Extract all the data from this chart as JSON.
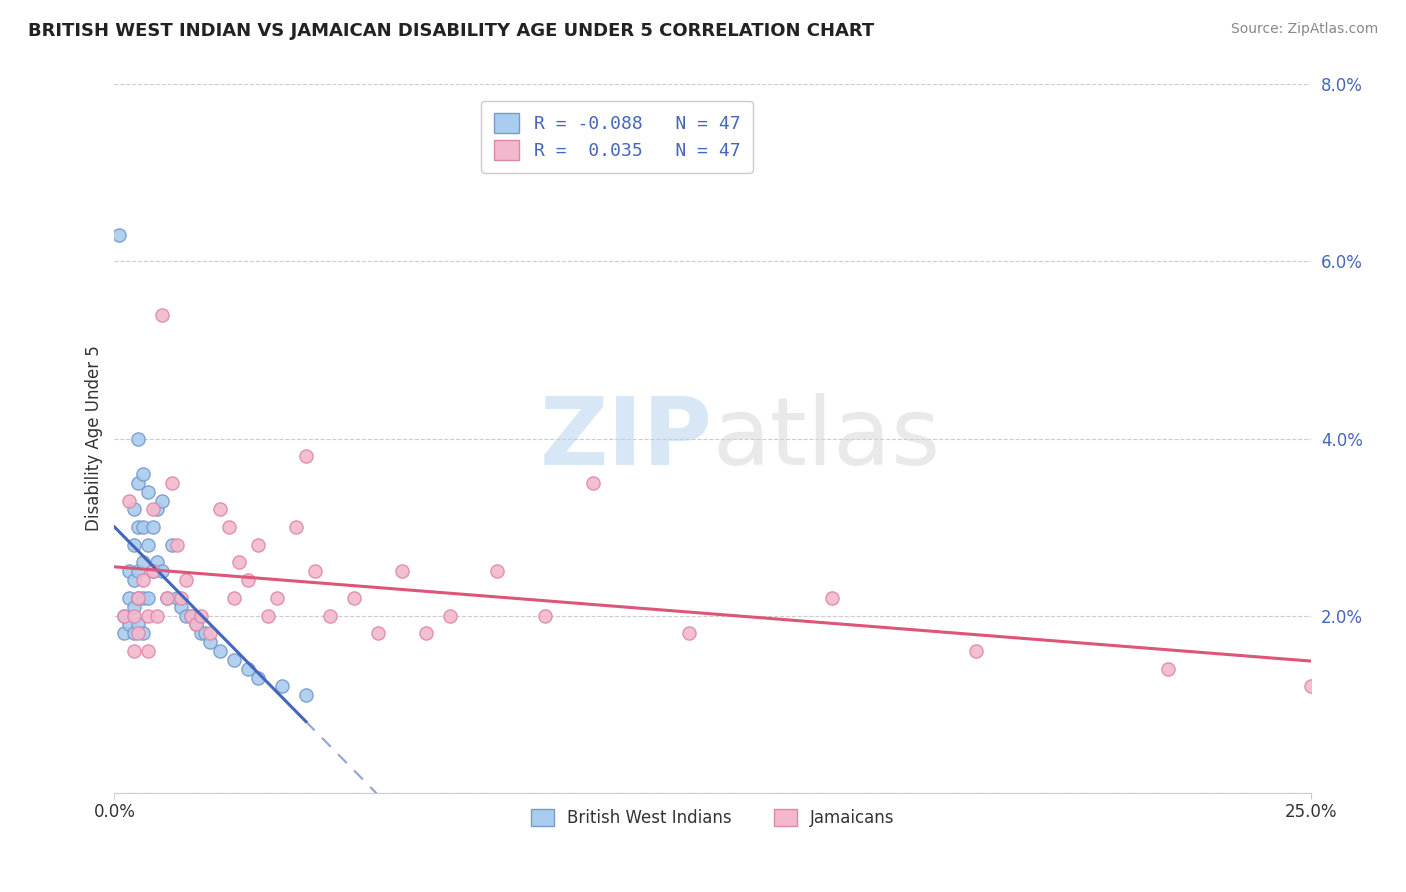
{
  "title": "BRITISH WEST INDIAN VS JAMAICAN DISABILITY AGE UNDER 5 CORRELATION CHART",
  "source": "Source: ZipAtlas.com",
  "ylabel": "Disability Age Under 5",
  "legend_labels": [
    "British West Indians",
    "Jamaicans"
  ],
  "color_bwi": "#aaccee",
  "color_jam": "#f4b8ce",
  "color_bwi_edge": "#7799cc",
  "color_jam_edge": "#dd88aa",
  "color_bwi_line": "#4466bb",
  "color_jam_line": "#dd5577",
  "xlim": [
    0.0,
    0.25
  ],
  "ylim": [
    0.0,
    0.08
  ],
  "yticks": [
    0.0,
    0.02,
    0.04,
    0.06,
    0.08
  ],
  "ytick_labels": [
    "",
    "2.0%",
    "4.0%",
    "6.0%",
    "8.0%"
  ],
  "watermark_zip": "ZIP",
  "watermark_atlas": "atlas",
  "bwi_x": [
    0.001,
    0.002,
    0.002,
    0.003,
    0.003,
    0.003,
    0.004,
    0.004,
    0.004,
    0.004,
    0.004,
    0.005,
    0.005,
    0.005,
    0.005,
    0.005,
    0.005,
    0.006,
    0.006,
    0.006,
    0.006,
    0.006,
    0.007,
    0.007,
    0.007,
    0.008,
    0.008,
    0.009,
    0.009,
    0.01,
    0.01,
    0.011,
    0.012,
    0.013,
    0.014,
    0.015,
    0.016,
    0.017,
    0.018,
    0.019,
    0.02,
    0.022,
    0.025,
    0.028,
    0.03,
    0.035,
    0.04
  ],
  "bwi_y": [
    0.063,
    0.02,
    0.018,
    0.025,
    0.022,
    0.019,
    0.032,
    0.028,
    0.024,
    0.021,
    0.018,
    0.04,
    0.035,
    0.03,
    0.025,
    0.022,
    0.019,
    0.036,
    0.03,
    0.026,
    0.022,
    0.018,
    0.034,
    0.028,
    0.022,
    0.03,
    0.025,
    0.032,
    0.026,
    0.033,
    0.025,
    0.022,
    0.028,
    0.022,
    0.021,
    0.02,
    0.02,
    0.019,
    0.018,
    0.018,
    0.017,
    0.016,
    0.015,
    0.014,
    0.013,
    0.012,
    0.011
  ],
  "jam_x": [
    0.002,
    0.003,
    0.004,
    0.004,
    0.005,
    0.005,
    0.006,
    0.007,
    0.007,
    0.008,
    0.008,
    0.009,
    0.01,
    0.011,
    0.012,
    0.013,
    0.014,
    0.015,
    0.016,
    0.017,
    0.018,
    0.02,
    0.022,
    0.024,
    0.025,
    0.026,
    0.028,
    0.03,
    0.032,
    0.034,
    0.038,
    0.04,
    0.042,
    0.045,
    0.05,
    0.055,
    0.06,
    0.065,
    0.07,
    0.08,
    0.09,
    0.1,
    0.12,
    0.15,
    0.18,
    0.22,
    0.25
  ],
  "jam_y": [
    0.02,
    0.033,
    0.02,
    0.016,
    0.022,
    0.018,
    0.024,
    0.02,
    0.016,
    0.032,
    0.025,
    0.02,
    0.054,
    0.022,
    0.035,
    0.028,
    0.022,
    0.024,
    0.02,
    0.019,
    0.02,
    0.018,
    0.032,
    0.03,
    0.022,
    0.026,
    0.024,
    0.028,
    0.02,
    0.022,
    0.03,
    0.038,
    0.025,
    0.02,
    0.022,
    0.018,
    0.025,
    0.018,
    0.02,
    0.025,
    0.02,
    0.035,
    0.018,
    0.022,
    0.016,
    0.014,
    0.012
  ]
}
